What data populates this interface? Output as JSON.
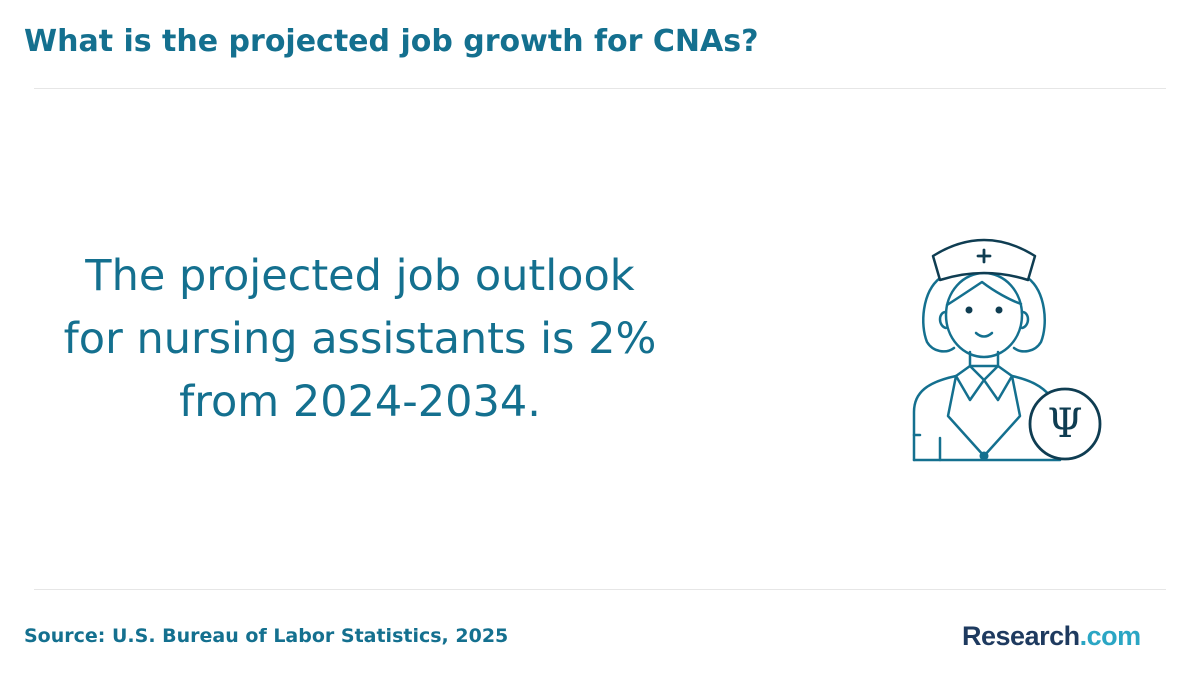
{
  "page": {
    "title": "What is the projected job growth for CNAs?",
    "statement_lines": [
      "The projected job outlook",
      "for nursing assistants is 2%",
      "from 2024-2034."
    ],
    "source": "Source: U.S. Bureau of Labor Statistics, 2025",
    "logo": {
      "primary": "Research",
      "secondary": ".com"
    },
    "illustration": {
      "icon": "nurse-psychology-icon",
      "symbol": "Ψ"
    }
  },
  "colors": {
    "accent": "#14708F",
    "divider": "#E6E6E6",
    "logo_primary": "#1E3A5F",
    "logo_secondary": "#2BA6C4",
    "background": "#FFFFFF"
  }
}
